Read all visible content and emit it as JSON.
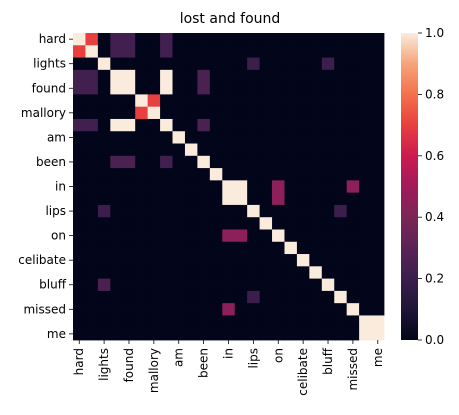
{
  "chart_data": {
    "type": "heatmap",
    "title": "lost and found",
    "xlabel": "",
    "ylabel": "",
    "tokens": [
      "hard",
      "hard",
      "lights",
      "found",
      "found",
      "mallory",
      "mallory",
      "am",
      "am",
      "been",
      "been",
      "in",
      "in",
      "lips",
      "lips",
      "on",
      "on",
      "celibate",
      "celibate",
      "bluff",
      "bluff",
      "missed",
      "missed",
      "me",
      "me"
    ],
    "x_tick_labels": [
      "hard",
      "lights",
      "found",
      "mallory",
      "am",
      "been",
      "in",
      "lips",
      "on",
      "celibate",
      "bluff",
      "missed",
      "me"
    ],
    "y_tick_labels": [
      "hard",
      "lights",
      "found",
      "mallory",
      "am",
      "been",
      "in",
      "lips",
      "on",
      "celibate",
      "bluff",
      "missed",
      "me"
    ],
    "colorbar": {
      "vmin": 0.0,
      "vmax": 1.0,
      "ticks": [
        "0.0",
        "0.2",
        "0.4",
        "0.6",
        "0.8",
        "1.0"
      ]
    },
    "values": [
      [
        1.0,
        0.7,
        0.0,
        0.22,
        0.22,
        0.0,
        0.0,
        0.22,
        0.0,
        0.0,
        0.0,
        0.0,
        0.0,
        0.0,
        0.0,
        0.0,
        0.0,
        0.0,
        0.0,
        0.0,
        0.0,
        0.0,
        0.0,
        0.0,
        0.0
      ],
      [
        0.7,
        1.0,
        0.0,
        0.22,
        0.22,
        0.0,
        0.0,
        0.22,
        0.0,
        0.0,
        0.0,
        0.0,
        0.0,
        0.0,
        0.0,
        0.0,
        0.0,
        0.0,
        0.0,
        0.0,
        0.0,
        0.0,
        0.0,
        0.0,
        0.0
      ],
      [
        0.0,
        0.0,
        1.0,
        0.0,
        0.0,
        0.0,
        0.0,
        0.0,
        0.0,
        0.0,
        0.0,
        0.0,
        0.0,
        0.0,
        0.2,
        0.0,
        0.0,
        0.0,
        0.0,
        0.0,
        0.2,
        0.0,
        0.0,
        0.0,
        0.0
      ],
      [
        0.22,
        0.22,
        0.0,
        1.0,
        1.0,
        0.0,
        0.0,
        1.0,
        0.0,
        0.0,
        0.25,
        0.0,
        0.0,
        0.0,
        0.0,
        0.0,
        0.0,
        0.0,
        0.0,
        0.0,
        0.0,
        0.0,
        0.0,
        0.0,
        0.0
      ],
      [
        0.22,
        0.22,
        0.0,
        1.0,
        1.0,
        0.0,
        0.0,
        1.0,
        0.0,
        0.0,
        0.25,
        0.0,
        0.0,
        0.0,
        0.0,
        0.0,
        0.0,
        0.0,
        0.0,
        0.0,
        0.0,
        0.0,
        0.0,
        0.0,
        0.0
      ],
      [
        0.0,
        0.0,
        0.0,
        0.0,
        0.0,
        1.0,
        0.7,
        0.0,
        0.0,
        0.0,
        0.0,
        0.0,
        0.0,
        0.0,
        0.0,
        0.0,
        0.0,
        0.0,
        0.0,
        0.0,
        0.0,
        0.0,
        0.0,
        0.0,
        0.0
      ],
      [
        0.0,
        0.0,
        0.0,
        0.0,
        0.0,
        0.7,
        1.0,
        0.0,
        0.0,
        0.0,
        0.0,
        0.0,
        0.0,
        0.0,
        0.0,
        0.0,
        0.0,
        0.0,
        0.0,
        0.0,
        0.0,
        0.0,
        0.0,
        0.0,
        0.0
      ],
      [
        0.22,
        0.22,
        0.0,
        1.0,
        1.0,
        0.0,
        0.0,
        1.0,
        0.0,
        0.0,
        0.25,
        0.0,
        0.0,
        0.0,
        0.0,
        0.0,
        0.0,
        0.0,
        0.0,
        0.0,
        0.0,
        0.0,
        0.0,
        0.0,
        0.0
      ],
      [
        0.0,
        0.0,
        0.0,
        0.0,
        0.0,
        0.0,
        0.0,
        0.0,
        1.0,
        0.0,
        0.0,
        0.0,
        0.0,
        0.0,
        0.0,
        0.0,
        0.0,
        0.0,
        0.0,
        0.0,
        0.0,
        0.0,
        0.0,
        0.0,
        0.0
      ],
      [
        0.0,
        0.0,
        0.0,
        0.0,
        0.0,
        0.0,
        0.0,
        0.0,
        0.0,
        1.0,
        0.0,
        0.0,
        0.0,
        0.0,
        0.0,
        0.0,
        0.0,
        0.0,
        0.0,
        0.0,
        0.0,
        0.0,
        0.0,
        0.0,
        0.0
      ],
      [
        0.0,
        0.0,
        0.0,
        0.25,
        0.25,
        0.0,
        0.0,
        0.22,
        0.0,
        0.0,
        1.0,
        0.0,
        0.0,
        0.0,
        0.0,
        0.0,
        0.0,
        0.0,
        0.0,
        0.0,
        0.0,
        0.0,
        0.0,
        0.0,
        0.0
      ],
      [
        0.0,
        0.0,
        0.0,
        0.0,
        0.0,
        0.0,
        0.0,
        0.0,
        0.0,
        0.0,
        0.0,
        1.0,
        0.0,
        0.0,
        0.0,
        0.0,
        0.0,
        0.0,
        0.0,
        0.0,
        0.0,
        0.0,
        0.0,
        0.0,
        0.0
      ],
      [
        0.0,
        0.0,
        0.0,
        0.0,
        0.0,
        0.0,
        0.0,
        0.0,
        0.0,
        0.0,
        0.0,
        0.0,
        1.0,
        1.0,
        0.0,
        0.0,
        0.45,
        0.0,
        0.0,
        0.0,
        0.0,
        0.0,
        0.45,
        0.0,
        0.0
      ],
      [
        0.0,
        0.0,
        0.0,
        0.0,
        0.0,
        0.0,
        0.0,
        0.0,
        0.0,
        0.0,
        0.0,
        0.0,
        1.0,
        1.0,
        0.0,
        0.0,
        0.45,
        0.0,
        0.0,
        0.0,
        0.0,
        0.0,
        0.0,
        0.0,
        0.0
      ],
      [
        0.0,
        0.0,
        0.2,
        0.0,
        0.0,
        0.0,
        0.0,
        0.0,
        0.0,
        0.0,
        0.0,
        0.0,
        0.0,
        0.0,
        1.0,
        0.0,
        0.0,
        0.0,
        0.0,
        0.0,
        0.0,
        0.2,
        0.0,
        0.0,
        0.0
      ],
      [
        0.0,
        0.0,
        0.0,
        0.0,
        0.0,
        0.0,
        0.0,
        0.0,
        0.0,
        0.0,
        0.0,
        0.0,
        0.0,
        0.0,
        0.0,
        1.0,
        0.0,
        0.0,
        0.0,
        0.0,
        0.0,
        0.0,
        0.0,
        0.0,
        0.0
      ],
      [
        0.0,
        0.0,
        0.0,
        0.0,
        0.0,
        0.0,
        0.0,
        0.0,
        0.0,
        0.0,
        0.0,
        0.0,
        0.45,
        0.45,
        0.0,
        0.0,
        1.0,
        0.0,
        0.0,
        0.0,
        0.0,
        0.0,
        0.0,
        0.0,
        0.0
      ],
      [
        0.0,
        0.0,
        0.0,
        0.0,
        0.0,
        0.0,
        0.0,
        0.0,
        0.0,
        0.0,
        0.0,
        0.0,
        0.0,
        0.0,
        0.0,
        0.0,
        0.0,
        1.0,
        0.0,
        0.0,
        0.0,
        0.0,
        0.0,
        0.0,
        0.0
      ],
      [
        0.0,
        0.0,
        0.0,
        0.0,
        0.0,
        0.0,
        0.0,
        0.0,
        0.0,
        0.0,
        0.0,
        0.0,
        0.0,
        0.0,
        0.0,
        0.0,
        0.0,
        0.0,
        1.0,
        0.0,
        0.0,
        0.0,
        0.0,
        0.0,
        0.0
      ],
      [
        0.0,
        0.0,
        0.0,
        0.0,
        0.0,
        0.0,
        0.0,
        0.0,
        0.0,
        0.0,
        0.0,
        0.0,
        0.0,
        0.0,
        0.0,
        0.0,
        0.0,
        0.0,
        0.0,
        1.0,
        0.0,
        0.0,
        0.0,
        0.0,
        0.0
      ],
      [
        0.0,
        0.0,
        0.25,
        0.0,
        0.0,
        0.0,
        0.0,
        0.0,
        0.0,
        0.0,
        0.0,
        0.0,
        0.0,
        0.0,
        0.0,
        0.0,
        0.0,
        0.0,
        0.0,
        0.0,
        1.0,
        0.0,
        0.0,
        0.0,
        0.0
      ],
      [
        0.0,
        0.0,
        0.0,
        0.0,
        0.0,
        0.0,
        0.0,
        0.0,
        0.0,
        0.0,
        0.0,
        0.0,
        0.0,
        0.0,
        0.2,
        0.0,
        0.0,
        0.0,
        0.0,
        0.0,
        0.0,
        1.0,
        0.0,
        0.0,
        0.0
      ],
      [
        0.0,
        0.0,
        0.0,
        0.0,
        0.0,
        0.0,
        0.0,
        0.0,
        0.0,
        0.0,
        0.0,
        0.0,
        0.45,
        0.0,
        0.0,
        0.0,
        0.0,
        0.0,
        0.0,
        0.0,
        0.0,
        0.0,
        1.0,
        0.0,
        0.0
      ],
      [
        0.0,
        0.0,
        0.0,
        0.0,
        0.0,
        0.0,
        0.0,
        0.0,
        0.0,
        0.0,
        0.0,
        0.0,
        0.0,
        0.0,
        0.0,
        0.0,
        0.0,
        0.0,
        0.0,
        0.0,
        0.0,
        0.0,
        0.0,
        1.0,
        1.0
      ],
      [
        0.0,
        0.0,
        0.0,
        0.0,
        0.0,
        0.0,
        0.0,
        0.0,
        0.0,
        0.0,
        0.0,
        0.0,
        0.0,
        0.0,
        0.0,
        0.0,
        0.0,
        0.0,
        0.0,
        0.0,
        0.0,
        0.0,
        0.0,
        1.0,
        1.0
      ]
    ],
    "colormap": "rocket",
    "grid": false,
    "legend": "colorbar-right"
  }
}
